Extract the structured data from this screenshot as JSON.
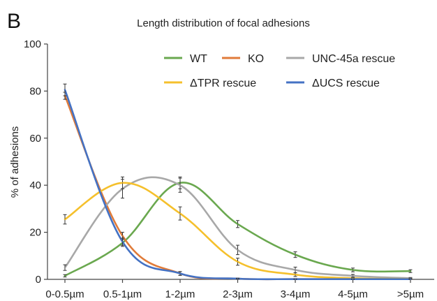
{
  "panel_label": "B",
  "chart_data": {
    "type": "line",
    "title": "Length distribution of focal adhesions",
    "xlabel": "",
    "ylabel": "% of adhesions",
    "ylim": [
      0,
      100
    ],
    "yticks": [
      0,
      20,
      40,
      60,
      80,
      100
    ],
    "categories": [
      "0-0.5µm",
      "0.5-1µm",
      "1-2µm",
      "2-3µm",
      "3-4µm",
      "4-5µm",
      ">5µm"
    ],
    "grid": false,
    "smooth": true,
    "legend": "top-right",
    "series": [
      {
        "name": "WT",
        "color": "#6aa84f",
        "values": [
          1.5,
          15.5,
          41,
          23.5,
          10.5,
          4,
          3.5
        ],
        "errors": [
          0.5,
          1.5,
          2.5,
          1.5,
          1.2,
          0.8,
          0.6
        ]
      },
      {
        "name": "KO",
        "color": "#e07b39",
        "values": [
          78,
          18.5,
          2.5,
          0.3,
          0.1,
          0.1,
          0.1
        ],
        "errors": [
          1.5,
          1.5,
          0.8,
          0.2,
          0.1,
          0.1,
          0.1
        ]
      },
      {
        "name": "UNC-45a rescue",
        "color": "#a8a8a8",
        "values": [
          5,
          38.5,
          40,
          12.5,
          4,
          1.5,
          0.5
        ],
        "errors": [
          1.2,
          4,
          3,
          2,
          1.2,
          0.6,
          0.3
        ]
      },
      {
        "name": "ΔTPR rescue",
        "color": "#f5c02c",
        "values": [
          25.5,
          41,
          28,
          7.5,
          2,
          0.5,
          0.2
        ],
        "errors": [
          2,
          2.5,
          2.8,
          1.5,
          0.8,
          0.3,
          0.2
        ]
      },
      {
        "name": "ΔUCS rescue",
        "color": "#4472c4",
        "values": [
          80.5,
          16,
          2.5,
          0.3,
          0.1,
          0.1,
          0.1
        ],
        "errors": [
          2.5,
          1.5,
          0.8,
          0.2,
          0.1,
          0.1,
          0.1
        ]
      }
    ]
  }
}
